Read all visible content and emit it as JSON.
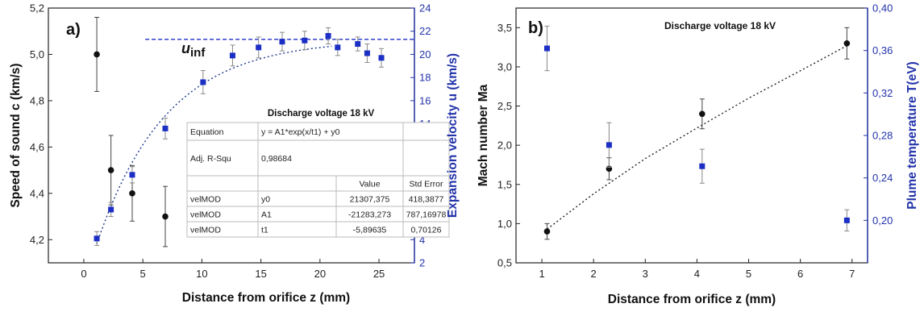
{
  "colors": {
    "black": "#111111",
    "blue": "#1c2fc4",
    "axis_blue": "#2233aa",
    "table_border": "#bbbbbb"
  },
  "chart_data": [
    {
      "type": "scatter",
      "panel_label": "a)",
      "xlabel": "Distance from orifice z (mm)",
      "ylabel_left": "Speed of sound c (km/s)",
      "ylabel_right": "Expansion velocity u (km/s)",
      "xlim": [
        -3,
        28
      ],
      "ylim_left": [
        4.1,
        5.2
      ],
      "ylim_right": [
        2,
        24
      ],
      "xticks": [
        0,
        5,
        10,
        15,
        20,
        25
      ],
      "xtick_labels": [
        "0",
        "5",
        "10",
        "15",
        "20",
        "25"
      ],
      "yticks_left": [
        4.2,
        4.4,
        4.6,
        4.8,
        5.0,
        5.2
      ],
      "ytick_labels_left": [
        "4,2",
        "4,4",
        "4,6",
        "4,8",
        "5,0",
        "5,2"
      ],
      "yticks_right": [
        2,
        4,
        6,
        8,
        10,
        12,
        14,
        16,
        18,
        20,
        22,
        24
      ],
      "ytick_labels_right": [
        "2",
        "4",
        "6",
        "8",
        "10",
        "12",
        "14",
        "16",
        "18",
        "20",
        "22",
        "24"
      ],
      "annotation": "Discharge voltage 18 kV",
      "asymptote_label_main": "u",
      "asymptote_label_sub": "inf",
      "asymptote_value": 21.3,
      "series": [
        {
          "axis": "left",
          "marker": "circle",
          "color": "#111111",
          "points": [
            {
              "x": 1.1,
              "y": 5.0,
              "err": 0.16
            },
            {
              "x": 2.3,
              "y": 4.5,
              "err": 0.15
            },
            {
              "x": 4.1,
              "y": 4.4,
              "err": 0.12
            },
            {
              "x": 6.9,
              "y": 4.3,
              "err": 0.13
            }
          ]
        },
        {
          "axis": "right",
          "marker": "square",
          "color": "#1c2fc4",
          "points": [
            {
              "x": 1.1,
              "y": 4.1,
              "err": 0.6
            },
            {
              "x": 2.3,
              "y": 6.6,
              "err": 0.6
            },
            {
              "x": 4.1,
              "y": 9.6,
              "err": 0.7
            },
            {
              "x": 6.9,
              "y": 13.6,
              "err": 0.9
            },
            {
              "x": 10.1,
              "y": 17.6,
              "err": 1.0
            },
            {
              "x": 12.6,
              "y": 19.9,
              "err": 0.9
            },
            {
              "x": 14.8,
              "y": 20.6,
              "err": 0.9
            },
            {
              "x": 16.8,
              "y": 21.1,
              "err": 0.8
            },
            {
              "x": 18.7,
              "y": 21.2,
              "err": 0.8
            },
            {
              "x": 20.7,
              "y": 21.6,
              "err": 0.7
            },
            {
              "x": 21.5,
              "y": 20.6,
              "err": 0.7
            },
            {
              "x": 23.2,
              "y": 20.9,
              "err": 0.6
            },
            {
              "x": 24.0,
              "y": 20.1,
              "err": 0.8
            },
            {
              "x": 25.2,
              "y": 19.7,
              "err": 0.8
            }
          ]
        }
      ],
      "fit": {
        "axis": "right",
        "equation": "y = A1*exp(x/t1) + y0",
        "y0": 21307.375,
        "A1": -21283.273,
        "t1": -5.89635,
        "scale": 0.001,
        "x_range": [
          1.1,
          21
        ]
      },
      "fit_table": {
        "rows": [
          [
            "Equation",
            "y = A1*exp(x/t1) + y0",
            "",
            ""
          ],
          [
            "Adj. R-Squ",
            "0,98684",
            "",
            ""
          ],
          [
            "",
            "",
            "Value",
            "Std Error"
          ],
          [
            "velMOD",
            "y0",
            "21307,375",
            "418,3877"
          ],
          [
            "velMOD",
            "A1",
            "-21283,273",
            "787,16978"
          ],
          [
            "velMOD",
            "t1",
            "-5,89635",
            "0,70126"
          ]
        ]
      }
    },
    {
      "type": "scatter",
      "panel_label": "b)",
      "xlabel": "Distance from orifice z (mm)",
      "ylabel_left": "Mach number Ma",
      "ylabel_right": "Plume temperature T(eV)",
      "xlim": [
        0.5,
        7.3
      ],
      "ylim_left": [
        0.5,
        3.75
      ],
      "ylim_right": [
        0.16,
        0.4
      ],
      "xticks": [
        1,
        2,
        3,
        4,
        5,
        6,
        7
      ],
      "xtick_labels": [
        "1",
        "2",
        "3",
        "4",
        "5",
        "6",
        "7"
      ],
      "yticks_left": [
        0.5,
        1.0,
        1.5,
        2.0,
        2.5,
        3.0,
        3.5
      ],
      "ytick_labels_left": [
        "0,5",
        "1,0",
        "1,5",
        "2,0",
        "2,5",
        "3,0",
        "3,5"
      ],
      "yticks_right": [
        0.2,
        0.24,
        0.28,
        0.32,
        0.36,
        0.4
      ],
      "ytick_labels_right": [
        "0,20",
        "0,24",
        "0,28",
        "0,32",
        "0,36",
        "0,40"
      ],
      "annotation": "Discharge voltage 18 kV",
      "series": [
        {
          "axis": "left",
          "marker": "circle",
          "color": "#111111",
          "points": [
            {
              "x": 1.1,
              "y": 0.9,
              "err": 0.1
            },
            {
              "x": 2.3,
              "y": 1.7,
              "err": 0.14
            },
            {
              "x": 4.1,
              "y": 2.4,
              "err": 0.19
            },
            {
              "x": 6.9,
              "y": 3.3,
              "err": 0.2
            }
          ]
        },
        {
          "axis": "right",
          "marker": "square",
          "color": "#1c2fc4",
          "points": [
            {
              "x": 1.1,
              "y": 0.362,
              "err": 0.021
            },
            {
              "x": 2.3,
              "y": 0.271,
              "err": 0.021
            },
            {
              "x": 4.1,
              "y": 0.251,
              "err": 0.016
            },
            {
              "x": 6.9,
              "y": 0.2,
              "err": 0.01
            }
          ]
        }
      ],
      "trend": {
        "axis": "left",
        "points": [
          [
            1.1,
            0.93
          ],
          [
            2.0,
            1.38
          ],
          [
            3.0,
            1.83
          ],
          [
            4.0,
            2.22
          ],
          [
            5.0,
            2.6
          ],
          [
            6.0,
            2.95
          ],
          [
            6.9,
            3.27
          ]
        ]
      }
    }
  ]
}
